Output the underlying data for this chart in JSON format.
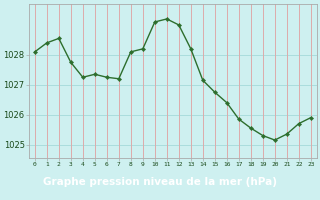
{
  "x": [
    0,
    1,
    2,
    3,
    4,
    5,
    6,
    7,
    8,
    9,
    10,
    11,
    12,
    13,
    14,
    15,
    16,
    17,
    18,
    19,
    20,
    21,
    22,
    23
  ],
  "y": [
    1028.1,
    1028.4,
    1028.55,
    1027.75,
    1027.25,
    1027.35,
    1027.25,
    1027.2,
    1028.1,
    1028.2,
    1029.1,
    1029.2,
    1029.0,
    1028.2,
    1027.15,
    1026.75,
    1026.4,
    1025.85,
    1025.55,
    1025.3,
    1025.15,
    1025.35,
    1025.7,
    1025.9
  ],
  "line_color": "#2d6e2d",
  "marker": "D",
  "marker_size": 2.2,
  "bg_color": "#cef0f0",
  "grid_color_h": "#aadddd",
  "grid_color_v": "#ddaaaa",
  "xlabel": "Graphe pression niveau de la mer (hPa)",
  "xlabel_fontsize": 7.5,
  "ylabel_ticks": [
    1025,
    1026,
    1027,
    1028
  ],
  "xlim": [
    -0.5,
    23.5
  ],
  "ylim": [
    1024.55,
    1029.7
  ],
  "xticks": [
    0,
    1,
    2,
    3,
    4,
    5,
    6,
    7,
    8,
    9,
    10,
    11,
    12,
    13,
    14,
    15,
    16,
    17,
    18,
    19,
    20,
    21,
    22,
    23
  ],
  "spine_color": "#aaaaaa",
  "label_color": "#1a4a1a",
  "bottom_bg": "#2d5a1a",
  "bottom_text_color": "#ffffff"
}
